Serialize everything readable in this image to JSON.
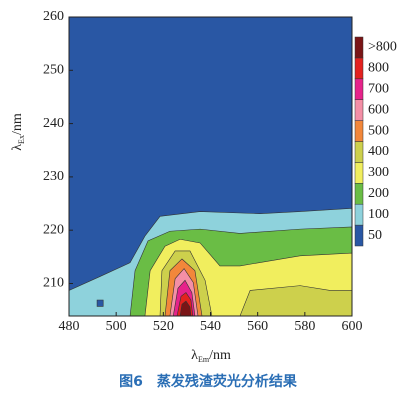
{
  "chart_data": {
    "type": "contour",
    "title": "图6　蒸发残渣荧光分析结果",
    "xlabel": {
      "symbol": "λ",
      "sub": "Em",
      "unit": "/nm"
    },
    "ylabel": {
      "symbol": "λ",
      "sub": "Ex",
      "unit": "/nm"
    },
    "xlim": [
      480,
      600
    ],
    "xticks": [
      480,
      500,
      520,
      540,
      560,
      580,
      600
    ],
    "ylim": [
      203.9,
      260
    ],
    "yticks": [
      210,
      220,
      230,
      240,
      250,
      260
    ],
    "colorbar": [
      {
        "value": 50,
        "color": "#2957a4"
      },
      {
        "value": 100,
        "color": "#8ed2dc"
      },
      {
        "value": 200,
        "color": "#6abd45"
      },
      {
        "value": 300,
        "color": "#f1ee5e"
      },
      {
        "value": 400,
        "color": "#cdd04c"
      },
      {
        "value": 500,
        "color": "#f2873a"
      },
      {
        "value": 600,
        "color": "#f48fa6"
      },
      {
        "value": 700,
        "color": "#e6238a"
      },
      {
        "value": 800,
        "color": "#e3221f"
      },
      {
        "label": ">800",
        "color": "#7a1516"
      }
    ],
    "contours": [
      {
        "band": 1,
        "points": [
          [
            480,
            203.9
          ],
          [
            480,
            208.7
          ],
          [
            493.1,
            211.3
          ],
          [
            505.9,
            213.9
          ],
          [
            512.2,
            218.9
          ],
          [
            518.6,
            222.6
          ],
          [
            535.6,
            223.5
          ],
          [
            561,
            223.1
          ],
          [
            578,
            223.5
          ],
          [
            600,
            224.1
          ],
          [
            600,
            203.9
          ]
        ]
      },
      {
        "band": 0,
        "points": [
          [
            491.9,
            206.9
          ],
          [
            494.5,
            206.9
          ],
          [
            494.5,
            205.7
          ],
          [
            491.9,
            205.7
          ]
        ]
      },
      {
        "band": 2,
        "points": [
          [
            505.9,
            203.9
          ],
          [
            508,
            212.4
          ],
          [
            513.5,
            218
          ],
          [
            522.8,
            219.8
          ],
          [
            535.6,
            220.2
          ],
          [
            552.5,
            219.4
          ],
          [
            578,
            220.2
          ],
          [
            600,
            220.6
          ],
          [
            600,
            203.9
          ]
        ]
      },
      {
        "band": 3,
        "points": [
          [
            512.2,
            203.9
          ],
          [
            514.4,
            212.4
          ],
          [
            520.7,
            217
          ],
          [
            527.1,
            218.3
          ],
          [
            535.6,
            217.6
          ],
          [
            544,
            213.3
          ],
          [
            552.5,
            213.3
          ],
          [
            578,
            215.2
          ],
          [
            600,
            215.7
          ],
          [
            600,
            203.9
          ]
        ]
      },
      {
        "band": 4,
        "points": [
          [
            552.5,
            203.9
          ],
          [
            556.8,
            208.7
          ],
          [
            578,
            209.6
          ],
          [
            590.7,
            208.7
          ],
          [
            600,
            208.7
          ],
          [
            600,
            203.9
          ]
        ]
      },
      {
        "band": 4,
        "points": [
          [
            518.6,
            203.9
          ],
          [
            519.4,
            212.4
          ],
          [
            525,
            216.1
          ],
          [
            531.3,
            216.1
          ],
          [
            537.7,
            210.6
          ],
          [
            540.6,
            203.9
          ]
        ]
      },
      {
        "band": 5,
        "points": [
          [
            520.7,
            203.9
          ],
          [
            522.8,
            212.4
          ],
          [
            527.9,
            214.6
          ],
          [
            533.4,
            212.4
          ],
          [
            536.4,
            203.9
          ]
        ]
      },
      {
        "band": 6,
        "points": [
          [
            522.8,
            203.9
          ],
          [
            525,
            210.9
          ],
          [
            528.8,
            212.8
          ],
          [
            532.7,
            210.2
          ],
          [
            534.7,
            203.9
          ]
        ]
      },
      {
        "band": 7,
        "points": [
          [
            524.2,
            203.9
          ],
          [
            526.2,
            209.1
          ],
          [
            529.2,
            210.6
          ],
          [
            532.1,
            208.3
          ],
          [
            533.4,
            203.9
          ]
        ]
      },
      {
        "band": 8,
        "points": [
          [
            525.8,
            203.9
          ],
          [
            527.5,
            207.6
          ],
          [
            529.6,
            208.3
          ],
          [
            531.7,
            206.9
          ],
          [
            532.5,
            203.9
          ]
        ]
      },
      {
        "band": 9,
        "points": [
          [
            527.1,
            203.9
          ],
          [
            527.9,
            206.1
          ],
          [
            529.6,
            206.7
          ],
          [
            531.3,
            205.6
          ],
          [
            531.7,
            203.9
          ]
        ]
      }
    ]
  }
}
